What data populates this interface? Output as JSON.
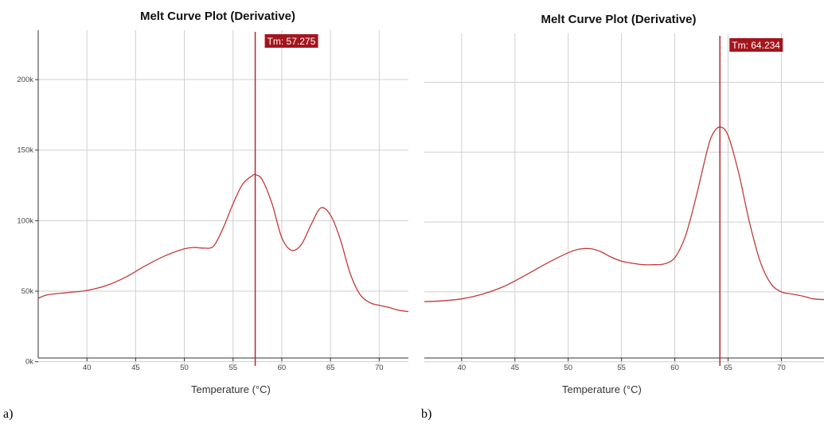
{
  "chart_data": [
    {
      "type": "line",
      "panel_label": "a)",
      "title": "Melt Curve Plot (Derivative)",
      "xlabel": "Temperature (°C)",
      "ylabel": "",
      "xlim": [
        35,
        73
      ],
      "ylim": [
        -3000,
        235000
      ],
      "xticks": [
        40,
        45,
        50,
        55,
        60,
        65,
        70
      ],
      "yticks": [
        {
          "value": 0,
          "label": "0k"
        },
        {
          "value": 50000,
          "label": "50k"
        },
        {
          "value": 100000,
          "label": "100k"
        },
        {
          "value": 150000,
          "label": "150k"
        },
        {
          "value": 200000,
          "label": "200k"
        }
      ],
      "grid": true,
      "tm": {
        "value": 57.275,
        "label": "Tm: 57.275"
      },
      "series": [
        {
          "x": [
            35,
            36,
            38,
            40,
            42,
            44,
            46,
            48,
            50,
            51,
            52,
            53,
            54,
            55,
            56,
            57,
            57.3,
            58,
            59,
            60,
            61,
            62,
            63,
            64,
            65,
            66,
            67,
            68,
            69,
            70,
            71,
            72,
            73
          ],
          "y": [
            45000,
            47500,
            49000,
            50500,
            54000,
            60000,
            68000,
            75000,
            80000,
            81000,
            80500,
            82000,
            95000,
            112000,
            126000,
            132000,
            132500,
            129000,
            112000,
            88000,
            79000,
            83000,
            97000,
            109000,
            104000,
            87000,
            63000,
            48000,
            42000,
            40000,
            38500,
            36500,
            35500
          ]
        }
      ]
    },
    {
      "type": "line",
      "panel_label": "b)",
      "title": "Melt Curve Plot (Derivative)",
      "xlabel": "Temperature (°C)",
      "ylabel": "",
      "xlim": [
        36.5,
        74
      ],
      "ylim": [
        -3000,
        235000
      ],
      "xticks": [
        40,
        45,
        50,
        55,
        60,
        65,
        70
      ],
      "yticks": [],
      "grid": true,
      "tm": {
        "value": 64.234,
        "label": "Tm: 64.234"
      },
      "series": [
        {
          "x": [
            36.5,
            38,
            40,
            42,
            44,
            46,
            48,
            50,
            51,
            52,
            53,
            54,
            55,
            56,
            57,
            58,
            59,
            60,
            61,
            62,
            63,
            63.5,
            64.2,
            65,
            66,
            67,
            68,
            69,
            70,
            71,
            72,
            73,
            74
          ],
          "y": [
            43000,
            43500,
            45000,
            48500,
            54000,
            62000,
            70500,
            78000,
            80500,
            81000,
            79000,
            75000,
            72000,
            70500,
            69500,
            69500,
            70000,
            74500,
            90000,
            118000,
            150000,
            162000,
            168000,
            162000,
            135000,
            100000,
            72000,
            56000,
            50000,
            48500,
            47000,
            45000,
            44500
          ]
        }
      ]
    }
  ]
}
